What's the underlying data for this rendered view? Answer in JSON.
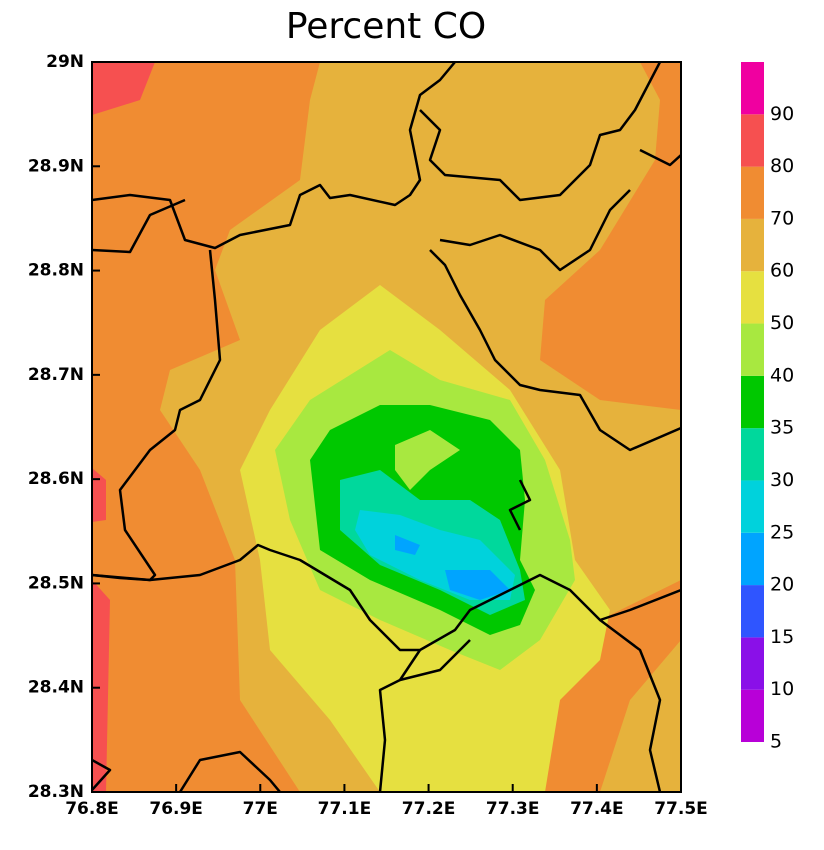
{
  "chart_data": {
    "type": "contour",
    "title": "Percent CO",
    "xlim": [
      76.8,
      77.5
    ],
    "ylim": [
      28.3,
      29
    ],
    "xticks": [
      {
        "value": 76.8,
        "label": "76.8E"
      },
      {
        "value": 76.9,
        "label": "76.9E"
      },
      {
        "value": 77.0,
        "label": "77E"
      },
      {
        "value": 77.1,
        "label": "77.1E"
      },
      {
        "value": 77.2,
        "label": "77.2E"
      },
      {
        "value": 77.3,
        "label": "77.3E"
      },
      {
        "value": 77.4,
        "label": "77.4E"
      },
      {
        "value": 77.5,
        "label": "77.5E"
      }
    ],
    "yticks": [
      {
        "value": 28.3,
        "label": "28.3N"
      },
      {
        "value": 28.4,
        "label": "28.4N"
      },
      {
        "value": 28.5,
        "label": "28.5N"
      },
      {
        "value": 28.6,
        "label": "28.6N"
      },
      {
        "value": 28.7,
        "label": "28.7N"
      },
      {
        "value": 28.8,
        "label": "28.8N"
      },
      {
        "value": 28.9,
        "label": "28.9N"
      },
      {
        "value": 29,
        "label": "29N"
      }
    ],
    "colorbar": {
      "levels": [
        5,
        10,
        15,
        20,
        25,
        30,
        35,
        40,
        50,
        60,
        70,
        80,
        90
      ],
      "colors": [
        "#b800d8",
        "#8a10e8",
        "#2f55ff",
        "#00a4ff",
        "#00d2dc",
        "#00d89c",
        "#00c800",
        "#a8e840",
        "#e6e040",
        "#e6b23c",
        "#f08c32",
        "#f65050",
        "#f000a0"
      ]
    }
  }
}
